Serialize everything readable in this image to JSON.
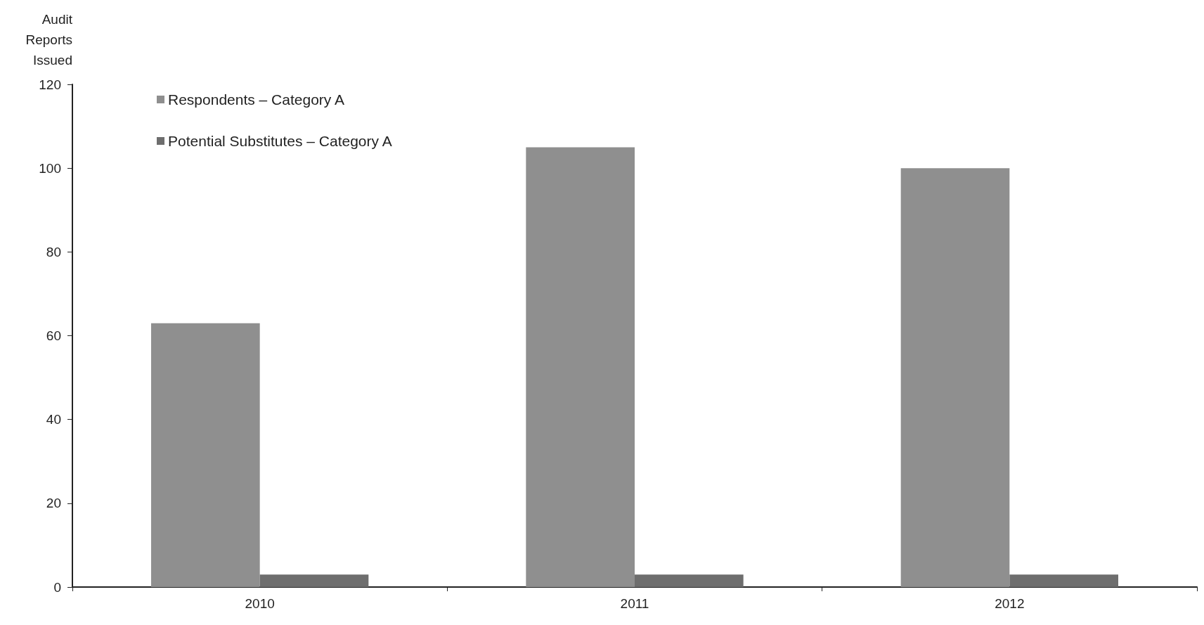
{
  "chart_data": {
    "type": "bar",
    "ylabel": "Audit\nReports\nIssued",
    "categories": [
      "2010",
      "2011",
      "2012"
    ],
    "series": [
      {
        "name": "Respondents – Category A",
        "color": "#8f8f8f",
        "values": [
          63,
          105,
          100
        ]
      },
      {
        "name": "Potential Substitutes – Category A",
        "color": "#6e6e6e",
        "values": [
          3,
          3,
          3
        ]
      }
    ],
    "ylim": [
      0,
      120
    ],
    "yticks": [
      0,
      20,
      40,
      60,
      80,
      100,
      120
    ],
    "grid": false,
    "legend": "top left"
  }
}
